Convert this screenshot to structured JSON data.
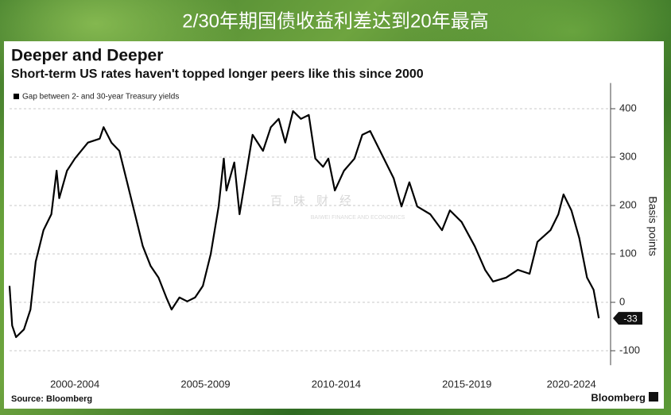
{
  "header": {
    "title": "2/30年期国债收益利差达到20年最高"
  },
  "watermark": {
    "name": "百味财经",
    "subtitle": "BAIWEI FINANCE AND ECONOMICS"
  },
  "chart_data": {
    "type": "line",
    "title": "Deeper and Deeper",
    "subtitle": "Short-term US rates haven't topped longer peers like this since 2000",
    "ylabel": "Basis points",
    "source": "Source: Bloomberg",
    "brand": "Bloomberg",
    "x": [
      2000.0,
      2000.1,
      2000.25,
      2000.55,
      2000.8,
      2001.0,
      2001.3,
      2001.6,
      2001.8,
      2001.9,
      2002.2,
      2002.5,
      2003.0,
      2003.45,
      2003.6,
      2003.9,
      2004.2,
      2004.5,
      2004.8,
      2005.1,
      2005.4,
      2005.7,
      2006.0,
      2006.2,
      2006.5,
      2006.8,
      2007.1,
      2007.4,
      2007.7,
      2008.0,
      2008.2,
      2008.3,
      2008.6,
      2008.8,
      2009.1,
      2009.3,
      2009.7,
      2010.0,
      2010.3,
      2010.55,
      2010.85,
      2011.15,
      2011.45,
      2011.7,
      2012.0,
      2012.2,
      2012.45,
      2012.8,
      2013.2,
      2013.5,
      2013.8,
      2014.25,
      2014.7,
      2015.0,
      2015.3,
      2015.6,
      2016.1,
      2016.55,
      2016.85,
      2017.3,
      2017.8,
      2018.2,
      2018.5,
      2019.0,
      2019.45,
      2019.9,
      2020.2,
      2020.7,
      2021.0,
      2021.2,
      2021.5,
      2021.8,
      2022.1,
      2022.35,
      2022.55
    ],
    "series": [
      {
        "name": "Gap between 2- and 30-year Treasury yields",
        "color": "#000000",
        "values": [
          34,
          -48,
          -72,
          -56,
          -15,
          84,
          149,
          182,
          272,
          215,
          272,
          297,
          330,
          338,
          362,
          330,
          313,
          248,
          182,
          116,
          75,
          51,
          10,
          -15,
          10,
          2,
          10,
          34,
          100,
          198,
          297,
          231,
          289,
          182,
          280,
          346,
          313,
          362,
          379,
          330,
          395,
          379,
          387,
          297,
          280,
          297,
          231,
          272,
          297,
          346,
          354,
          305,
          256,
          198,
          248,
          198,
          182,
          149,
          190,
          166,
          116,
          67,
          43,
          51,
          67,
          59,
          125,
          149,
          182,
          223,
          190,
          133,
          51,
          26,
          -33
        ]
      }
    ],
    "xlim": [
      2000,
      2023
    ],
    "xticks": [
      {
        "value": 2002.5,
        "label": "2000-2004"
      },
      {
        "value": 2007.5,
        "label": "2005-2009"
      },
      {
        "value": 2012.5,
        "label": "2010-2014"
      },
      {
        "value": 2017.5,
        "label": "2015-2019"
      },
      {
        "value": 2021.5,
        "label": "2020-2024"
      }
    ],
    "ylim": [
      -130,
      440
    ],
    "yticks": [
      -100,
      0,
      100,
      200,
      300,
      400
    ],
    "grid": true,
    "legend": "top-left"
  }
}
